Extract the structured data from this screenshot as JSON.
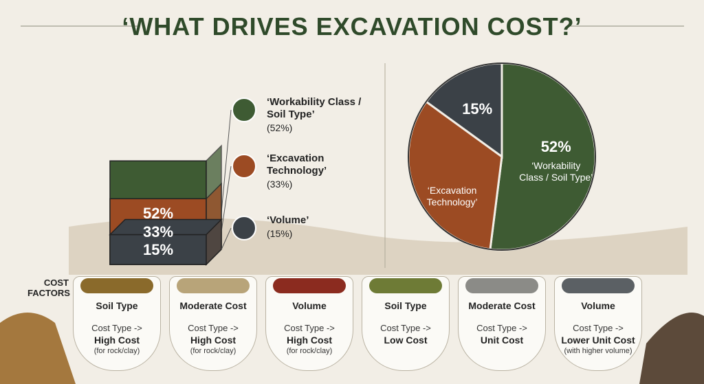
{
  "title": "‘WHAT DRIVES EXCAVATION COST?’",
  "chart_data": [
    {
      "type": "stacked-bar",
      "series": [
        {
          "name": "‘Workability Class / Soil Type’",
          "color": "#3e5b33",
          "values": [
            52
          ],
          "value_labels": [
            "52%"
          ],
          "legend_value_labels": [
            "(52%)"
          ]
        },
        {
          "name": "‘Excavation Technology’",
          "color": "#9c4b23",
          "values": [
            33
          ],
          "value_labels": [
            "33%"
          ],
          "legend_value_labels": [
            "(33%)"
          ]
        },
        {
          "name": "‘Volume’",
          "color": "#3b4147",
          "values": [
            15
          ],
          "value_labels": [
            "15%"
          ],
          "legend_value_labels": [
            "(15%)"
          ]
        }
      ]
    },
    {
      "type": "pie",
      "categories": [
        "‘Workability Class / Soil Type’",
        "‘Excavation Technology’",
        null
      ],
      "values": [
        52,
        33,
        15
      ],
      "value_labels": [
        "52%",
        null,
        "15%"
      ],
      "colors": [
        "#3e5b33",
        "#9c4b23",
        "#3b4147"
      ]
    }
  ],
  "side_label": "COST FACTORS",
  "cards": [
    {
      "header": "Soil Type",
      "line1": "Cost Type ->",
      "line2": "High Cost",
      "note": "(for rock/clay)",
      "color": "#8a6a2b"
    },
    {
      "header": "Moderate Cost",
      "line1": "Cost Type ->",
      "line2": "High Cost",
      "note": "(for rock/clay)",
      "color": "#b8a479"
    },
    {
      "header": "Volume",
      "line1": "Cost Type ->",
      "line2": "High Cost",
      "note": "(for rock/clay)",
      "color": "#8b2b1f"
    },
    {
      "header": "Soil Type",
      "line1": "Cost Type ->",
      "line2": "Low Cost",
      "note": null,
      "color": "#6e7b36"
    },
    {
      "header": "Moderate Cost",
      "line1": "Cost Type ->",
      "line2": "Unit Cost",
      "note": null,
      "color": "#8b8b87"
    },
    {
      "header": "Volume",
      "line1": "Cost Type ->",
      "line2": "Lower Unit Cost",
      "note": "(with higher volume)",
      "color": "#5b6064"
    }
  ]
}
